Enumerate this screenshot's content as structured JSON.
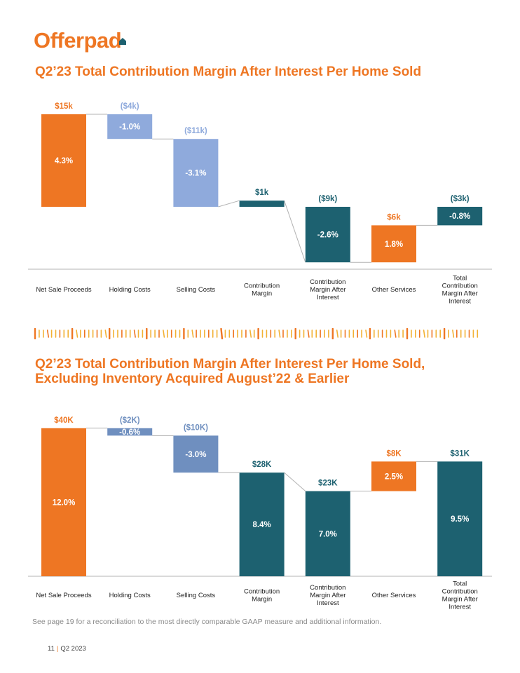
{
  "logo": {
    "text": "Offerpad"
  },
  "colors": {
    "orange": "#ee7623",
    "teal": "#1d6170",
    "light_blue": "#8faadc",
    "slate_blue": "#6f8fbf",
    "connector": "#b3b3b3"
  },
  "chart1_title": "Q2’23 Total Contribution Margin After Interest Per Home Sold",
  "chart2_title": "Q2’23 Total Contribution Margin After Interest Per Home Sold, Excluding Inventory Acquired August’22 & Earlier",
  "chart_data": [
    {
      "type": "bar",
      "subtype": "waterfall",
      "title": "Q2’23 Total Contribution Margin After Interest Per Home Sold",
      "categories": [
        "Net Sale Proceeds",
        "Holding Costs",
        "Selling Costs",
        "Contribution Margin",
        "Contribution Margin After Interest",
        "Other Services",
        "Total Contribution Margin After Interest"
      ],
      "values_k": [
        15,
        -4,
        -11,
        1,
        -9,
        6,
        -3
      ],
      "value_labels": [
        "$15k",
        "($4k)",
        "($11k)",
        "$1k",
        "($9k)",
        "$6k",
        "($3k)"
      ],
      "percent_labels": [
        "4.3%",
        "-1.0%",
        "-3.1%",
        "",
        "-2.6%",
        "1.8%",
        "-0.8%"
      ],
      "colors": [
        "orange",
        "light_blue",
        "light_blue",
        "teal",
        "teal",
        "orange",
        "teal"
      ],
      "bar_kind": [
        "total",
        "delta",
        "delta",
        "total",
        "total",
        "delta",
        "total"
      ],
      "ylim": [
        -9,
        15
      ],
      "xlabel": "",
      "ylabel": "",
      "grid": false
    },
    {
      "type": "bar",
      "subtype": "waterfall",
      "title": "Q2’23 Total Contribution Margin After Interest Per Home Sold, Excluding Inventory Acquired August’22 & Earlier",
      "categories": [
        "Net Sale Proceeds",
        "Holding Costs",
        "Selling Costs",
        "Contribution Margin",
        "Contribution Margin After Interest",
        "Other Services",
        "Total Contribution Margin After Interest"
      ],
      "values_k": [
        40,
        -2,
        -10,
        28,
        23,
        8,
        31
      ],
      "value_labels": [
        "$40K",
        "($2K)",
        "($10K)",
        "$28K",
        "$23K",
        "$8K",
        "$31K"
      ],
      "percent_labels": [
        "12.0%",
        "-0.6%",
        "-3.0%",
        "8.4%",
        "7.0%",
        "2.5%",
        "9.5%"
      ],
      "colors": [
        "orange",
        "slate_blue",
        "slate_blue",
        "teal",
        "teal",
        "orange",
        "teal"
      ],
      "bar_kind": [
        "total",
        "delta",
        "delta",
        "total",
        "total",
        "delta",
        "total"
      ],
      "ylim": [
        0,
        40
      ],
      "xlabel": "",
      "ylabel": "",
      "grid": false
    }
  ],
  "footnote": "See page 19 for a reconciliation to the most directly comparable GAAP measure and additional information.",
  "page": {
    "number": "11",
    "separator": "|",
    "period": "Q2 2023"
  }
}
